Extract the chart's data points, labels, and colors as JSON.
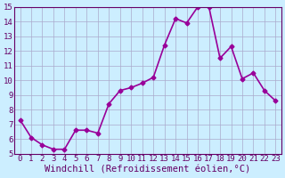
{
  "x": [
    0,
    1,
    2,
    3,
    4,
    5,
    6,
    7,
    8,
    9,
    10,
    11,
    12,
    13,
    14,
    15,
    16,
    17,
    18,
    19,
    20,
    21,
    22,
    23
  ],
  "y": [
    7.3,
    6.1,
    5.6,
    5.3,
    5.3,
    6.6,
    6.6,
    6.4,
    8.4,
    9.3,
    9.5,
    9.8,
    10.2,
    12.4,
    14.2,
    13.9,
    15.0,
    15.0,
    11.5,
    12.3,
    10.1,
    10.5,
    9.3,
    8.6
  ],
  "line_color": "#990099",
  "marker": "D",
  "marker_size": 2.5,
  "line_width": 1.2,
  "bg_color": "#cceeff",
  "grid_color": "#aaaacc",
  "xlabel": "Windchill (Refroidissement éolien,°C)",
  "xlim": [
    -0.5,
    23.5
  ],
  "ylim": [
    5,
    15
  ],
  "yticks": [
    5,
    6,
    7,
    8,
    9,
    10,
    11,
    12,
    13,
    14,
    15
  ],
  "xticks": [
    0,
    1,
    2,
    3,
    4,
    5,
    6,
    7,
    8,
    9,
    10,
    11,
    12,
    13,
    14,
    15,
    16,
    17,
    18,
    19,
    20,
    21,
    22,
    23
  ],
  "xlabel_fontsize": 7.5,
  "tick_fontsize": 6.5,
  "axis_label_color": "#660066",
  "tick_color": "#660066",
  "spine_color": "#660066"
}
